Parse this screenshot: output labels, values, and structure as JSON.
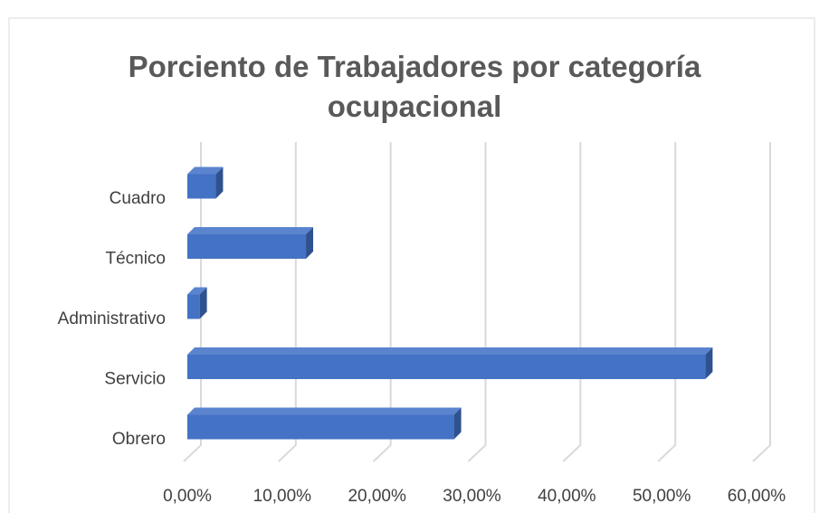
{
  "chart_data": {
    "type": "bar3d_horizontal",
    "title": "Porciento de Trabajadores por categoría ocupacional",
    "categories": [
      "Cuadro",
      "Técnico",
      "Administrativo",
      "Servicio",
      "Obrero"
    ],
    "values": [
      3,
      12.5,
      1.3,
      54.6,
      28.1
    ],
    "color": "#4472c4",
    "xlim": [
      0,
      60
    ],
    "xticks": [
      {
        "value": 0,
        "label": "0,00%"
      },
      {
        "value": 10,
        "label": "10,00%"
      },
      {
        "value": 20,
        "label": "20,00%"
      },
      {
        "value": 30,
        "label": "30,00%"
      },
      {
        "value": 40,
        "label": "40,00%"
      },
      {
        "value": 50,
        "label": "50,00%"
      },
      {
        "value": 60,
        "label": "60,00%"
      }
    ],
    "grid": true
  }
}
